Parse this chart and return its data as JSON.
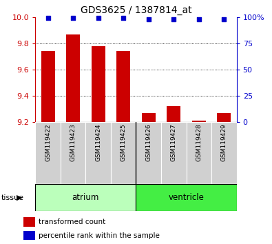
{
  "title": "GDS3625 / 1387814_at",
  "samples": [
    "GSM119422",
    "GSM119423",
    "GSM119424",
    "GSM119425",
    "GSM119426",
    "GSM119427",
    "GSM119428",
    "GSM119429"
  ],
  "bar_values": [
    9.74,
    9.87,
    9.78,
    9.74,
    9.27,
    9.32,
    9.21,
    9.27
  ],
  "percentile_values": [
    99,
    99,
    99,
    99,
    98,
    98,
    98,
    98
  ],
  "ylim_left": [
    9.2,
    10.0
  ],
  "ylim_right": [
    0,
    100
  ],
  "yticks_left": [
    9.2,
    9.4,
    9.6,
    9.8,
    10.0
  ],
  "yticks_right": [
    0,
    25,
    50,
    75,
    100
  ],
  "bar_color": "#cc0000",
  "dot_color": "#0000cc",
  "tissue_groups": [
    {
      "label": "atrium",
      "start": 0,
      "end": 3,
      "color": "#bbffbb"
    },
    {
      "label": "ventricle",
      "start": 4,
      "end": 7,
      "color": "#44ee44"
    }
  ],
  "tick_color_left": "#cc0000",
  "tick_color_right": "#0000cc",
  "bar_baseline": 9.2,
  "sample_box_color": "#d0d0d0",
  "gridline_ticks": [
    9.4,
    9.6,
    9.8
  ]
}
